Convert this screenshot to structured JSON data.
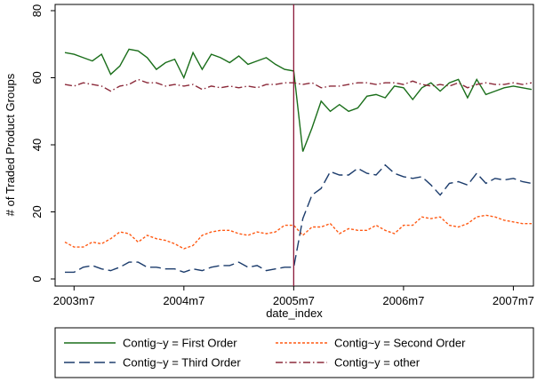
{
  "chart_data": {
    "type": "line",
    "y_label": "# of Traded Product Groups",
    "x_label": "date_index",
    "x": [
      "2003m6",
      "2003m7",
      "2003m8",
      "2003m9",
      "2003m10",
      "2003m11",
      "2003m12",
      "2004m1",
      "2004m2",
      "2004m3",
      "2004m4",
      "2004m5",
      "2004m6",
      "2004m7",
      "2004m8",
      "2004m9",
      "2004m10",
      "2004m11",
      "2004m12",
      "2005m1",
      "2005m2",
      "2005m3",
      "2005m4",
      "2005m5",
      "2005m6",
      "2005m7",
      "2005m8",
      "2005m9",
      "2005m10",
      "2005m11",
      "2005m12",
      "2006m1",
      "2006m2",
      "2006m3",
      "2006m4",
      "2006m5",
      "2006m6",
      "2006m7",
      "2006m8",
      "2006m9",
      "2006m10",
      "2006m11",
      "2006m12",
      "2007m1",
      "2007m2",
      "2007m3",
      "2007m4",
      "2007m5",
      "2007m6",
      "2007m7",
      "2007m8",
      "2007m9"
    ],
    "xticks": [
      "2003m7",
      "2004m7",
      "2005m7",
      "2006m7",
      "2007m7"
    ],
    "xline": "2005m7",
    "xline_color": "#8b1a3a",
    "ylim": [
      0,
      80
    ],
    "yticks": [
      0,
      20,
      40,
      60,
      80
    ],
    "series": [
      {
        "name": "Contig~y = First Order",
        "color": "#1a6e1a",
        "dash": "none",
        "values": [
          67.5,
          67,
          66,
          65,
          67,
          61,
          63.5,
          68.5,
          68,
          66,
          62.5,
          64.5,
          65.5,
          60,
          67.5,
          62.5,
          67,
          66,
          64.5,
          66.5,
          64,
          65,
          66,
          64,
          62.5,
          62,
          38,
          45,
          53,
          50,
          52,
          50,
          51,
          54.5,
          55,
          54,
          57.5,
          57,
          53.5,
          57,
          58.5,
          56,
          58.5,
          59.5,
          54,
          59.5,
          55,
          56,
          57,
          57.5,
          57,
          56.5
        ]
      },
      {
        "name": "Contig~y = Second Order",
        "color": "#ff5a14",
        "dash": "3,2",
        "values": [
          11,
          9.5,
          9.5,
          11,
          10.5,
          12,
          14,
          13.5,
          11,
          13,
          12,
          11.5,
          10.5,
          9,
          10,
          13,
          14,
          14.5,
          14.5,
          13.5,
          13,
          14,
          13.5,
          14,
          16,
          16,
          13,
          15.5,
          15.5,
          16.5,
          13.5,
          15,
          14.5,
          14.5,
          16,
          14.5,
          13.5,
          16,
          16,
          18.5,
          18,
          18.5,
          16,
          15.5,
          16.5,
          18.5,
          19,
          18.5,
          17.5,
          17,
          16.5,
          16.5
        ]
      },
      {
        "name": "Contig~y = Third Order",
        "color": "#1c3c6c",
        "dash": "12,5",
        "values": [
          2,
          2,
          3.5,
          4,
          3,
          2.5,
          3.5,
          5,
          5,
          3.5,
          3.5,
          3,
          3,
          2,
          3,
          2.5,
          3.5,
          4,
          4,
          5,
          3.5,
          4,
          2.5,
          3,
          3.5,
          3.5,
          18,
          25,
          27,
          32,
          31,
          31,
          33,
          31.5,
          31,
          34,
          31.5,
          30.5,
          30,
          30.5,
          28,
          25,
          28.5,
          29,
          28,
          31.5,
          28.5,
          30,
          29.5,
          30,
          29,
          28.5
        ]
      },
      {
        "name": "Contig~y = other",
        "color": "#8b2a3a",
        "dash": "8,3,1.5,3",
        "values": [
          58,
          57.5,
          58.5,
          58,
          57.5,
          56,
          57.5,
          58,
          59.5,
          58.5,
          58.5,
          57.5,
          58,
          57.5,
          58,
          56.5,
          57.5,
          57,
          57.5,
          57,
          57.5,
          57,
          58,
          58,
          58.5,
          58.5,
          58,
          58.5,
          57,
          57.5,
          57.5,
          58,
          58.5,
          58.5,
          58,
          58.5,
          58.5,
          58,
          59,
          58,
          57.5,
          58,
          57.5,
          58.5,
          57,
          58,
          58.5,
          58,
          58,
          58.5,
          58,
          58.5
        ]
      }
    ]
  }
}
